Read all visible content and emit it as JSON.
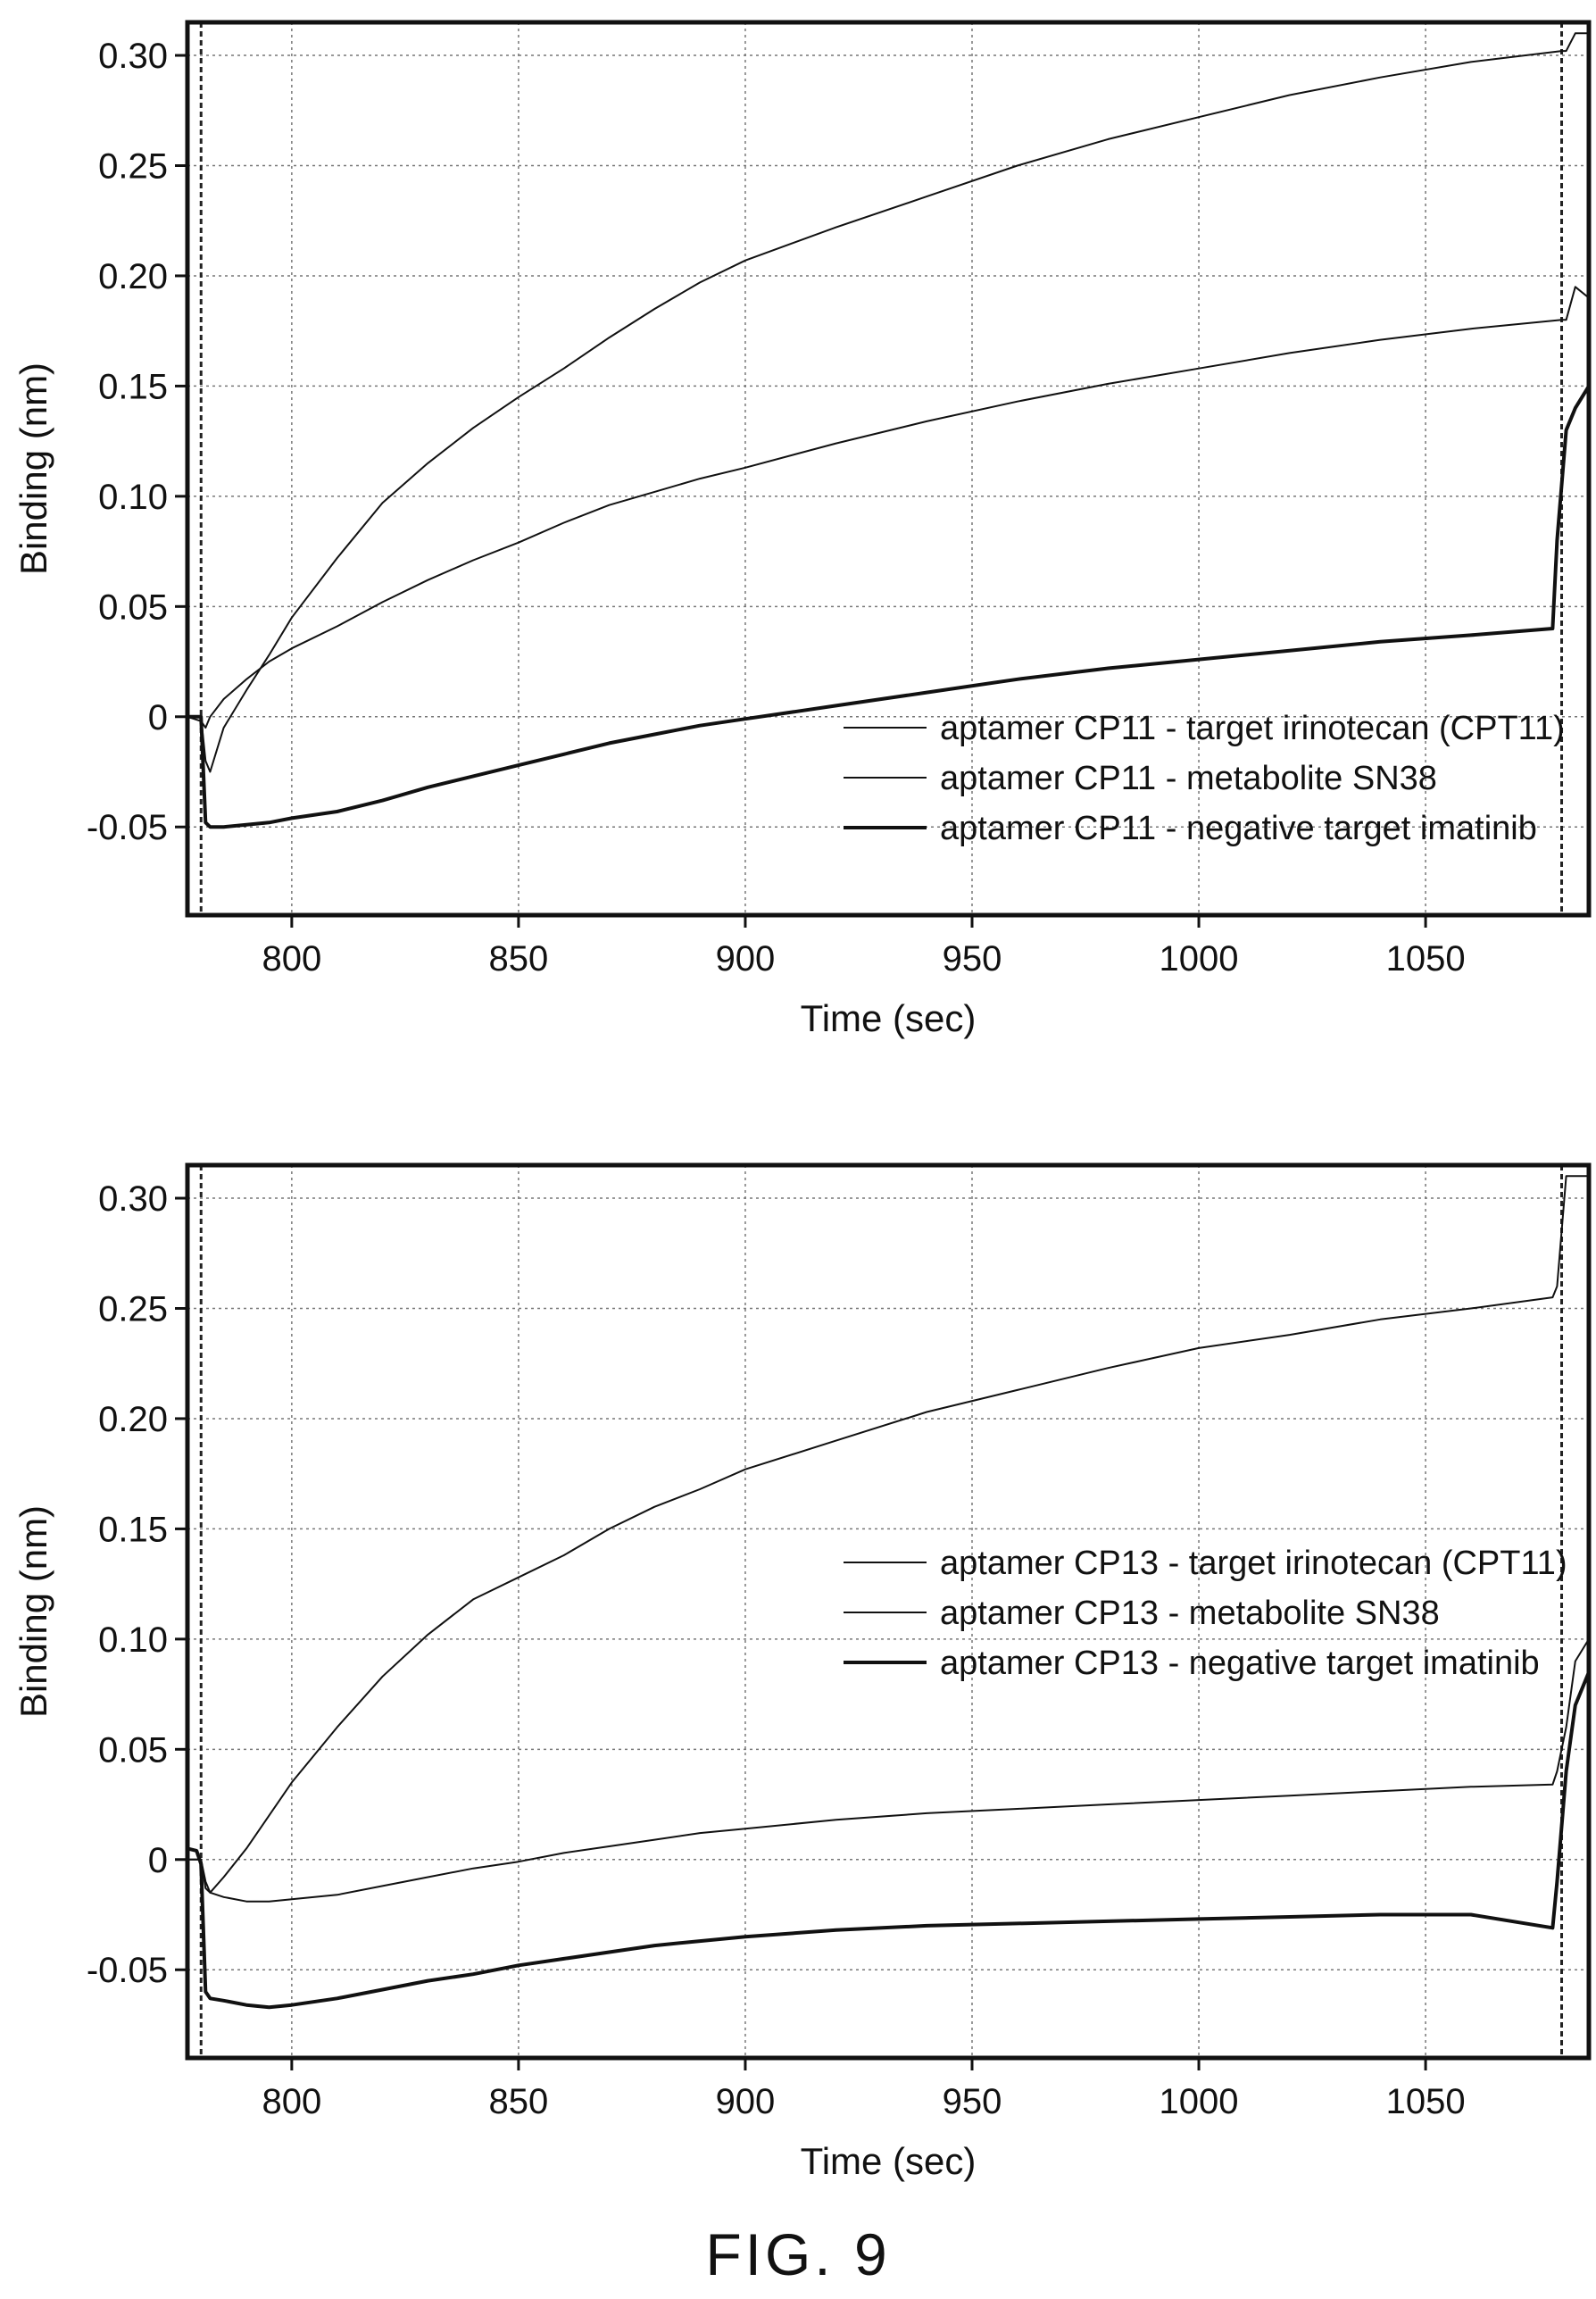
{
  "figure": {
    "caption": "FIG. 9"
  },
  "chart_data": [
    {
      "type": "line",
      "xlabel": "Time (sec)",
      "ylabel": "Binding (nm)",
      "xlim": [
        777,
        1086
      ],
      "ylim": [
        -0.09,
        0.315
      ],
      "x_ticks": [
        800,
        850,
        900,
        950,
        1000,
        1050
      ],
      "x_tick_labels": [
        "800",
        "850",
        "900",
        "950",
        "1000",
        "1050"
      ],
      "y_ticks": [
        0.3,
        0.25,
        0.2,
        0.15,
        0.1,
        0.05,
        0,
        -0.05
      ],
      "y_tick_labels": [
        "0.30",
        "0.25",
        "0.20",
        "0.15",
        "0.10",
        "0.05",
        "0",
        "-0.05"
      ],
      "vertical_markers": [
        780,
        1080
      ],
      "grid": true,
      "legend_position": "lower-right",
      "series": [
        {
          "name": "aptamer CP11 - target irinotecan (CPT11)",
          "line_width": 2,
          "x": [
            777,
            780,
            781,
            782,
            785,
            790,
            795,
            800,
            810,
            820,
            830,
            840,
            850,
            860,
            870,
            880,
            890,
            900,
            920,
            940,
            960,
            980,
            1000,
            1020,
            1040,
            1060,
            1080,
            1081,
            1083,
            1086
          ],
          "y": [
            0.0,
            0.0,
            -0.02,
            -0.025,
            -0.005,
            0.012,
            0.028,
            0.045,
            0.072,
            0.097,
            0.115,
            0.131,
            0.145,
            0.158,
            0.172,
            0.185,
            0.197,
            0.207,
            0.222,
            0.236,
            0.25,
            0.262,
            0.272,
            0.282,
            0.29,
            0.297,
            0.302,
            0.302,
            0.31,
            0.31
          ]
        },
        {
          "name": "aptamer CP11 - metabolite SN38",
          "line_width": 2,
          "x": [
            777,
            780,
            781,
            782,
            785,
            790,
            795,
            800,
            810,
            820,
            830,
            840,
            850,
            860,
            870,
            880,
            890,
            900,
            920,
            940,
            960,
            980,
            1000,
            1020,
            1040,
            1060,
            1080,
            1081,
            1083,
            1086
          ],
          "y": [
            0.0,
            -0.002,
            -0.005,
            0.0,
            0.008,
            0.017,
            0.025,
            0.031,
            0.041,
            0.052,
            0.062,
            0.071,
            0.079,
            0.088,
            0.096,
            0.102,
            0.108,
            0.113,
            0.124,
            0.134,
            0.143,
            0.151,
            0.158,
            0.165,
            0.171,
            0.176,
            0.18,
            0.18,
            0.195,
            0.19
          ]
        },
        {
          "name": "aptamer CP11 - negative target imatinib",
          "line_width": 4,
          "x": [
            777,
            780,
            781,
            782,
            785,
            790,
            795,
            800,
            810,
            820,
            830,
            840,
            850,
            860,
            870,
            880,
            890,
            900,
            920,
            940,
            960,
            980,
            1000,
            1020,
            1040,
            1060,
            1078,
            1079,
            1081,
            1083,
            1086
          ],
          "y": [
            0.0,
            0.0,
            -0.048,
            -0.05,
            -0.05,
            -0.049,
            -0.048,
            -0.046,
            -0.043,
            -0.038,
            -0.032,
            -0.027,
            -0.022,
            -0.017,
            -0.012,
            -0.008,
            -0.004,
            -0.001,
            0.005,
            0.011,
            0.017,
            0.022,
            0.026,
            0.03,
            0.034,
            0.037,
            0.04,
            0.08,
            0.13,
            0.14,
            0.15
          ]
        }
      ]
    },
    {
      "type": "line",
      "xlabel": "Time (sec)",
      "ylabel": "Binding (nm)",
      "xlim": [
        777,
        1086
      ],
      "ylim": [
        -0.09,
        0.315
      ],
      "x_ticks": [
        800,
        850,
        900,
        950,
        1000,
        1050
      ],
      "x_tick_labels": [
        "800",
        "850",
        "900",
        "950",
        "1000",
        "1050"
      ],
      "y_ticks": [
        0.3,
        0.25,
        0.2,
        0.15,
        0.1,
        0.05,
        0,
        -0.05
      ],
      "y_tick_labels": [
        "0.30",
        "0.25",
        "0.20",
        "0.15",
        "0.10",
        "0.05",
        "0",
        "-0.05"
      ],
      "vertical_markers": [
        780,
        1080
      ],
      "grid": true,
      "legend_position": "center-right",
      "series": [
        {
          "name": "aptamer CP13 - target irinotecan (CPT11)",
          "line_width": 2,
          "x": [
            777,
            780,
            781,
            782,
            785,
            790,
            795,
            800,
            810,
            820,
            830,
            840,
            850,
            860,
            870,
            880,
            890,
            900,
            920,
            940,
            960,
            980,
            1000,
            1020,
            1040,
            1060,
            1078,
            1079,
            1081,
            1086
          ],
          "y": [
            0.0,
            0.0,
            -0.01,
            -0.015,
            -0.008,
            0.005,
            0.02,
            0.035,
            0.06,
            0.083,
            0.102,
            0.118,
            0.128,
            0.138,
            0.15,
            0.16,
            0.168,
            0.177,
            0.19,
            0.203,
            0.213,
            0.223,
            0.232,
            0.238,
            0.245,
            0.25,
            0.255,
            0.26,
            0.31,
            0.31
          ]
        },
        {
          "name": "aptamer CP13 - metabolite SN38",
          "line_width": 2,
          "x": [
            777,
            780,
            781,
            782,
            785,
            790,
            795,
            800,
            810,
            820,
            830,
            840,
            850,
            860,
            870,
            880,
            890,
            900,
            920,
            940,
            960,
            980,
            1000,
            1020,
            1040,
            1060,
            1078,
            1079,
            1081,
            1083,
            1086
          ],
          "y": [
            0.0,
            0.0,
            -0.013,
            -0.015,
            -0.017,
            -0.019,
            -0.019,
            -0.018,
            -0.016,
            -0.012,
            -0.008,
            -0.004,
            -0.001,
            0.003,
            0.006,
            0.009,
            0.012,
            0.014,
            0.018,
            0.021,
            0.023,
            0.025,
            0.027,
            0.029,
            0.031,
            0.033,
            0.034,
            0.04,
            0.06,
            0.09,
            0.1
          ]
        },
        {
          "name": "aptamer CP13 - negative target imatinib",
          "line_width": 4,
          "x": [
            777,
            779,
            780,
            781,
            782,
            785,
            790,
            795,
            800,
            810,
            820,
            830,
            840,
            850,
            860,
            870,
            880,
            890,
            900,
            920,
            940,
            960,
            980,
            1000,
            1020,
            1040,
            1060,
            1078,
            1079,
            1081,
            1083,
            1086
          ],
          "y": [
            0.005,
            0.004,
            -0.002,
            -0.06,
            -0.063,
            -0.064,
            -0.066,
            -0.067,
            -0.066,
            -0.063,
            -0.059,
            -0.055,
            -0.052,
            -0.048,
            -0.045,
            -0.042,
            -0.039,
            -0.037,
            -0.035,
            -0.032,
            -0.03,
            -0.029,
            -0.028,
            -0.027,
            -0.026,
            -0.025,
            -0.025,
            -0.031,
            -0.01,
            0.04,
            0.07,
            0.085
          ]
        }
      ]
    }
  ]
}
